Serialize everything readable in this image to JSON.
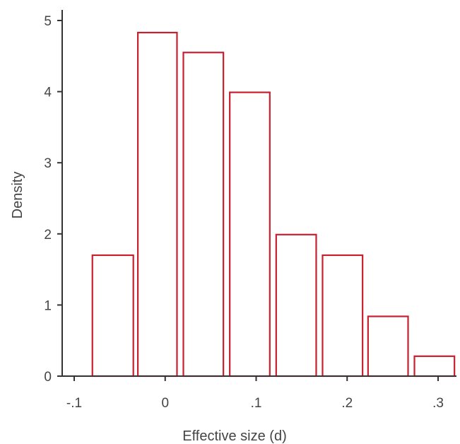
{
  "chart_data": {
    "type": "bar",
    "title": "",
    "xlabel": "Effective size (d)",
    "ylabel": "Density",
    "bar_color": "#c8202f",
    "axis_color": "#333333",
    "grid": false,
    "legend": "none",
    "xlim": [
      -0.1,
      0.3
    ],
    "ylim": [
      0,
      5
    ],
    "x_ticks": [
      {
        "value": -0.1,
        "label": "-.1"
      },
      {
        "value": 0.0,
        "label": "0"
      },
      {
        "value": 0.1,
        "label": ".1"
      },
      {
        "value": 0.2,
        "label": ".2"
      },
      {
        "value": 0.3,
        "label": ".3"
      }
    ],
    "y_ticks": [
      {
        "value": 0,
        "label": "0"
      },
      {
        "value": 1,
        "label": "1"
      },
      {
        "value": 2,
        "label": "2"
      },
      {
        "value": 3,
        "label": "3"
      },
      {
        "value": 4,
        "label": "4"
      },
      {
        "value": 5,
        "label": "5"
      }
    ],
    "bins": [
      {
        "x0": -0.08,
        "x1": -0.035,
        "density": 1.7
      },
      {
        "x0": -0.03,
        "x1": 0.013,
        "density": 4.83
      },
      {
        "x0": 0.02,
        "x1": 0.064,
        "density": 4.55
      },
      {
        "x0": 0.071,
        "x1": 0.115,
        "density": 3.99
      },
      {
        "x0": 0.122,
        "x1": 0.166,
        "density": 1.99
      },
      {
        "x0": 0.173,
        "x1": 0.217,
        "density": 1.7
      },
      {
        "x0": 0.223,
        "x1": 0.267,
        "density": 0.84
      },
      {
        "x0": 0.274,
        "x1": 0.318,
        "density": 0.28
      }
    ]
  }
}
